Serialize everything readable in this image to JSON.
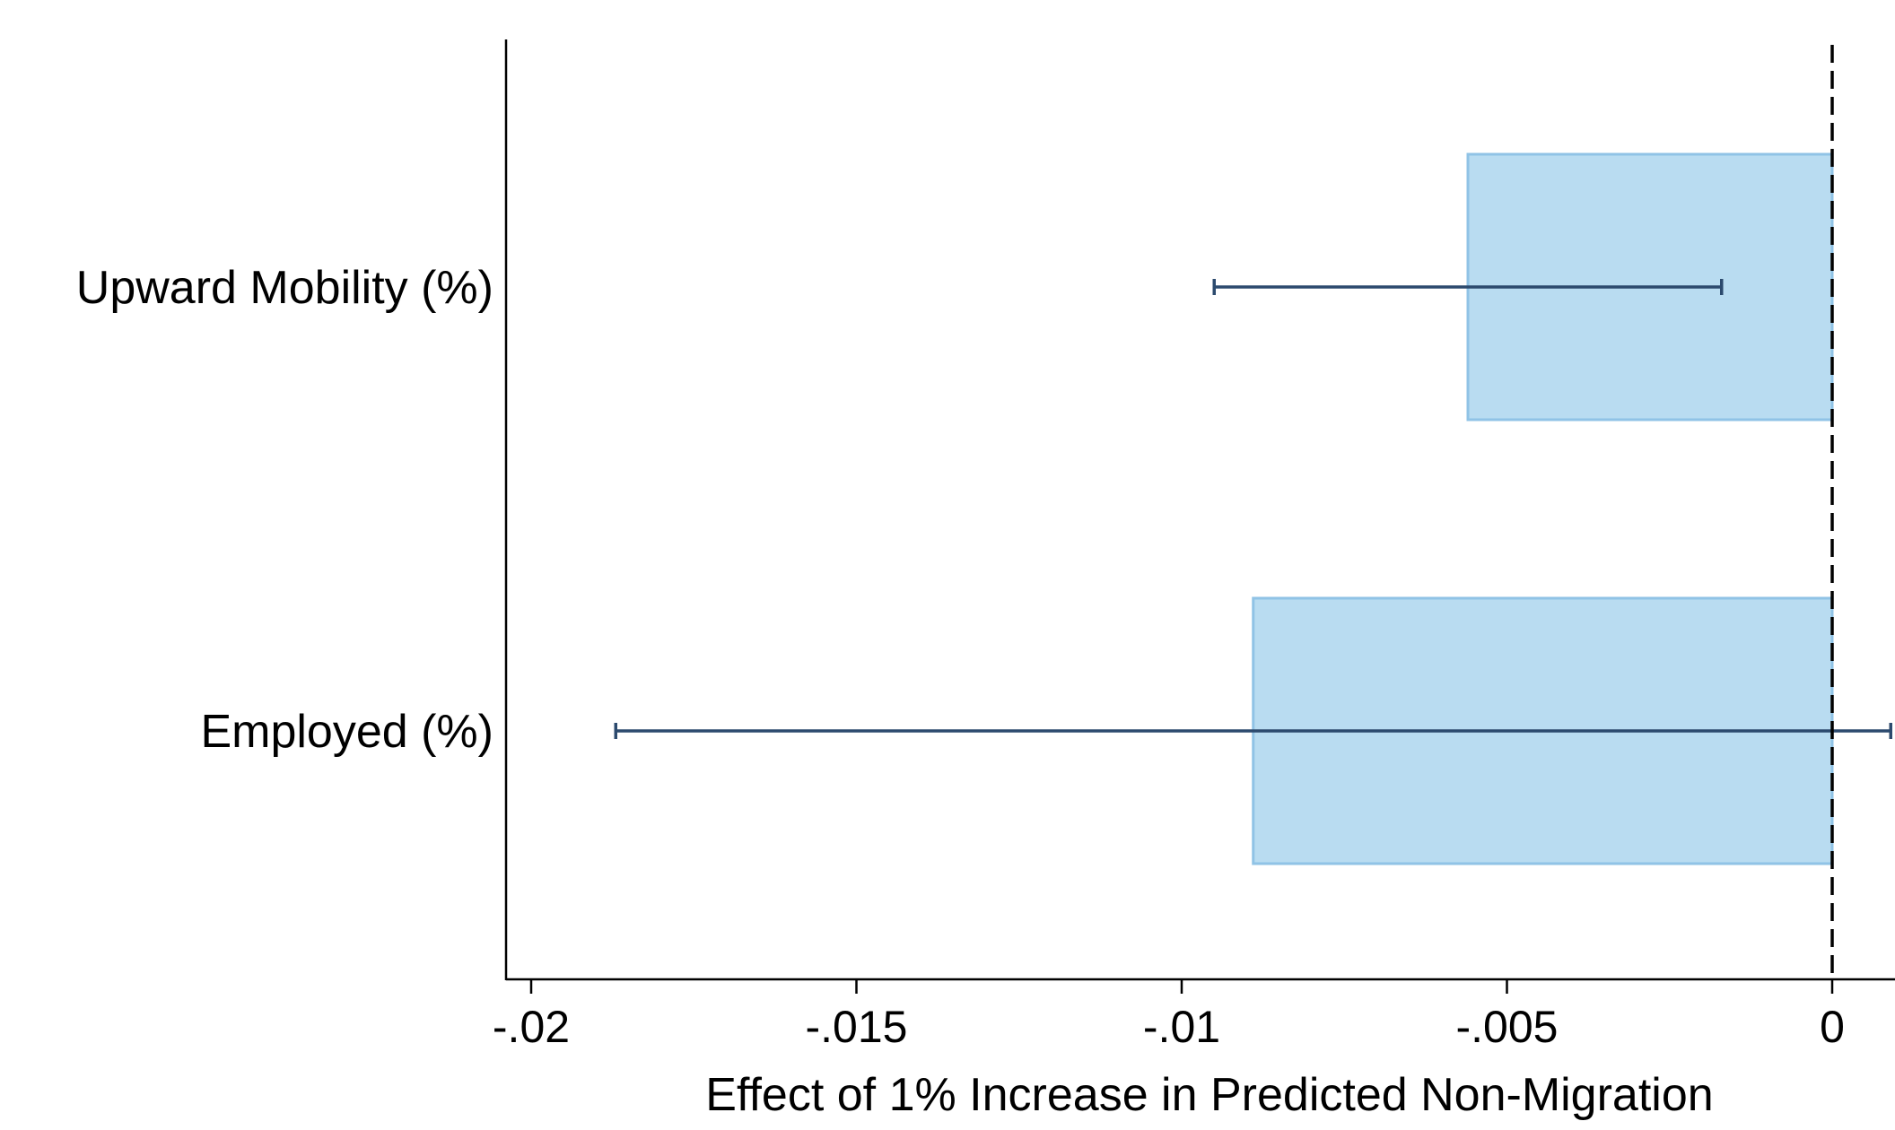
{
  "chart_data": {
    "type": "bar",
    "orientation": "horizontal",
    "categories": [
      "Upward Mobility (%)",
      "Employed (%)"
    ],
    "values": [
      -0.0056,
      -0.0089
    ],
    "error_bars": [
      {
        "low": -0.0095,
        "high": -0.0017
      },
      {
        "low": -0.0187,
        "high": 0.0009
      }
    ],
    "xlabel": "Effect of 1% Increase in Predicted Non-Migration",
    "ylabel": "",
    "title": "",
    "xlim": [
      -0.0204,
      0.0009
    ],
    "xticks": [
      -0.02,
      -0.015,
      -0.01,
      -0.005,
      0
    ],
    "xtick_labels": [
      "-.02",
      "-.015",
      "-.01",
      "-.005",
      "0"
    ],
    "reference_line": {
      "x": 0,
      "style": "dashed"
    },
    "grid": false,
    "legend": "none",
    "colors": {
      "bar_fill": "#b9dcf1",
      "bar_edge": "#90c3e6",
      "error_bar": "#2c4a6e",
      "axis": "#000000"
    }
  }
}
